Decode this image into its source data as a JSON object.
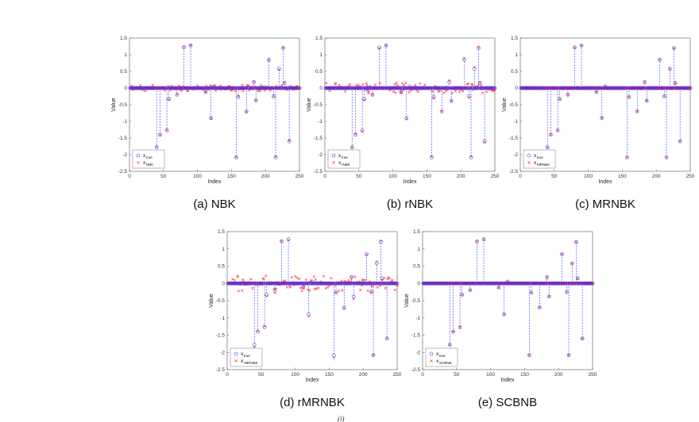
{
  "figure": {
    "footer_fragment": "(i)"
  },
  "colors": {
    "true_marker": "#3333ff",
    "estimate_marker": "#ff2222",
    "stem": "#3333ff",
    "axis": "#555555"
  },
  "chart_data": [
    {
      "id": "a",
      "type": "scatter",
      "caption": "(a) NBK",
      "xlabel": "Index",
      "ylabel": "Value",
      "xlim": [
        0,
        250
      ],
      "ylim": [
        -2.5,
        1.5
      ],
      "xticks": [
        "0",
        "50",
        "100",
        "150",
        "200",
        "250"
      ],
      "yticks": [
        "1.5",
        "1",
        "0.5",
        "0",
        "-0.5",
        "-1",
        "-1.5",
        "-2",
        "-2.5"
      ],
      "legend": {
        "placement": "bottom-left",
        "true_label": "x",
        "true_sub": "true",
        "est_label": "x",
        "est_sub": "NBK"
      },
      "noise": 0.09,
      "est_noise": 0.03
    },
    {
      "id": "b",
      "type": "scatter",
      "caption": "(b) rNBK",
      "xlabel": "Index",
      "ylabel": "Value",
      "xlim": [
        0,
        250
      ],
      "ylim": [
        -2.5,
        1.5
      ],
      "xticks": [
        "0",
        "50",
        "100",
        "150",
        "200",
        "250"
      ],
      "yticks": [
        "1.5",
        "1",
        "0.5",
        "0",
        "-0.5",
        "-1",
        "-1.5",
        "-2",
        "-2.5"
      ],
      "legend": {
        "placement": "bottom-left",
        "true_label": "x",
        "true_sub": "true",
        "est_label": "x",
        "est_sub": "rNBK"
      },
      "noise": 0.16,
      "est_noise": 0.05
    },
    {
      "id": "c",
      "type": "scatter",
      "caption": "(c) MRNBK",
      "xlabel": "Index",
      "ylabel": "Value",
      "xlim": [
        0,
        250
      ],
      "ylim": [
        -2.5,
        1.5
      ],
      "xticks": [
        "0",
        "50",
        "100",
        "150",
        "200",
        "250"
      ],
      "yticks": [
        "1.5",
        "1",
        "0.5",
        "0",
        "-0.5",
        "-1",
        "-1.5",
        "-2",
        "-2.5"
      ],
      "legend": {
        "placement": "bottom-left",
        "true_label": "x",
        "true_sub": "true",
        "est_label": "x",
        "est_sub": "MRNBK"
      },
      "noise": 0.0,
      "est_noise": 0.0
    },
    {
      "id": "d",
      "type": "scatter",
      "caption": "(d) rMRNBK",
      "xlabel": "Index",
      "ylabel": "Value",
      "xlim": [
        0,
        250
      ],
      "ylim": [
        -2.5,
        1.5
      ],
      "xticks": [
        "0",
        "50",
        "100",
        "150",
        "200",
        "250"
      ],
      "yticks": [
        "1.5",
        "1",
        "0.5",
        "0",
        "-0.5",
        "-1",
        "-1.5",
        "-2",
        "-2.5"
      ],
      "legend": {
        "placement": "bottom-left",
        "true_label": "x",
        "true_sub": "true",
        "est_label": "x",
        "est_sub": "rMRNBK"
      },
      "noise": 0.22,
      "est_noise": 0.08
    },
    {
      "id": "e",
      "type": "scatter",
      "caption": "(e) SCBNB",
      "xlabel": "Index",
      "ylabel": "Value",
      "xlim": [
        0,
        250
      ],
      "ylim": [
        -2.5,
        1.5
      ],
      "xticks": [
        "0",
        "50",
        "100",
        "150",
        "200",
        "250"
      ],
      "yticks": [
        "1.5",
        "1",
        "0.5",
        "0",
        "-0.5",
        "-1",
        "-1.5",
        "-2",
        "-2.5"
      ],
      "legend": {
        "placement": "bottom-left",
        "true_label": "x",
        "true_sub": "true",
        "est_label": "x",
        "est_sub": "SCBNB"
      },
      "noise": 0.0,
      "est_noise": 0.0
    }
  ],
  "signal": {
    "length": 250,
    "spikes": [
      {
        "x": 40,
        "y": -1.78
      },
      {
        "x": 45,
        "y": -1.4
      },
      {
        "x": 55,
        "y": -1.27
      },
      {
        "x": 58,
        "y": -0.33
      },
      {
        "x": 70,
        "y": -0.2
      },
      {
        "x": 80,
        "y": 1.22
      },
      {
        "x": 90,
        "y": 1.28
      },
      {
        "x": 112,
        "y": -0.12
      },
      {
        "x": 120,
        "y": -0.9
      },
      {
        "x": 125,
        "y": 0.05
      },
      {
        "x": 157,
        "y": -2.08
      },
      {
        "x": 160,
        "y": -0.27
      },
      {
        "x": 172,
        "y": -0.7
      },
      {
        "x": 183,
        "y": 0.18
      },
      {
        "x": 186,
        "y": -0.38
      },
      {
        "x": 205,
        "y": 0.85
      },
      {
        "x": 212,
        "y": -0.25
      },
      {
        "x": 215,
        "y": -2.08
      },
      {
        "x": 220,
        "y": 0.58
      },
      {
        "x": 226,
        "y": 1.2
      },
      {
        "x": 228,
        "y": 0.15
      },
      {
        "x": 235,
        "y": -1.6
      }
    ]
  }
}
